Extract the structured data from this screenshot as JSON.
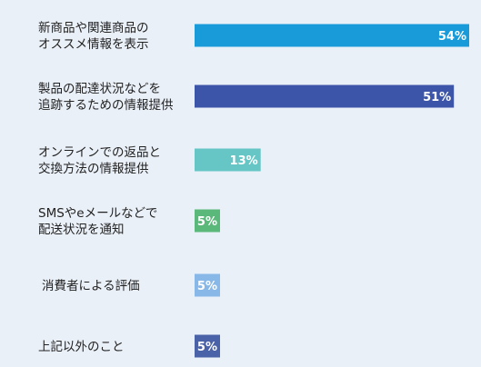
{
  "chart_data": {
    "type": "bar",
    "orientation": "horizontal",
    "categories": [
      [
        "新商品や関連商品の",
        "オススメ情報を表示"
      ],
      [
        "製品の配達状況などを",
        "追跡するための情報提供"
      ],
      [
        "オンラインでの返品と",
        "交換方法の情報提供"
      ],
      [
        "SMSやeメールなどで",
        "配送状況を通知"
      ],
      [
        "消費者による評価"
      ],
      [
        "上記以外のこと"
      ]
    ],
    "values": [
      54,
      51,
      13,
      5,
      5,
      5
    ],
    "value_labels": [
      "54%",
      "51%",
      "13%",
      "5%",
      "5%",
      "5%"
    ],
    "colors": [
      "#189bd8",
      "#3c55a8",
      "#66c6c6",
      "#5ab87a",
      "#88b8e8",
      "#4a62a8"
    ],
    "xlim": [
      0,
      54
    ],
    "grid": false,
    "legend": "none"
  }
}
